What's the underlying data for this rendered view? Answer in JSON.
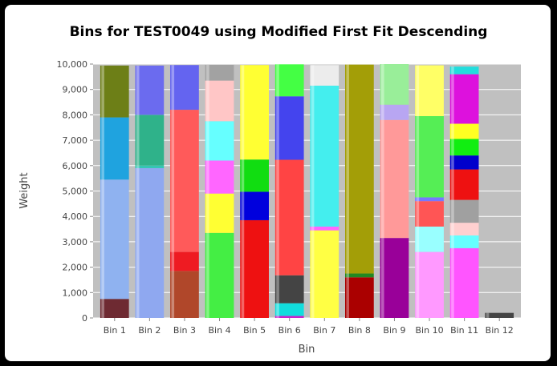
{
  "window": {
    "title": "Bins for TEST0049 using Modified First Fit Descending"
  },
  "chart_data": {
    "type": "bar",
    "stacked": true,
    "title": "Bins for TEST0049 using Modified First Fit Descending",
    "xlabel": "Bin",
    "ylabel": "Weight",
    "ylim": [
      0,
      10000
    ],
    "yticks": [
      0,
      1000,
      2000,
      3000,
      4000,
      5000,
      6000,
      7000,
      8000,
      9000,
      10000
    ],
    "ytick_labels": [
      "0",
      "1,000",
      "2,000",
      "3,000",
      "4,000",
      "5,000",
      "6,000",
      "7,000",
      "8,000",
      "9,000",
      "10,000"
    ],
    "grid": true,
    "legend": "none",
    "categories": [
      "Bin 1",
      "Bin 2",
      "Bin 3",
      "Bin 4",
      "Bin 5",
      "Bin 6",
      "Bin 7",
      "Bin 8",
      "Bin 9",
      "Bin 10",
      "Bin 11",
      "Bin 12"
    ],
    "bins": [
      {
        "name": "Bin 1",
        "items": [
          {
            "value": 750,
            "color": "#6e2a32"
          },
          {
            "value": 4700,
            "color": "#8fb2f0"
          },
          {
            "value": 2450,
            "color": "#1fa3df"
          },
          {
            "value": 2040,
            "color": "#6d7f17"
          }
        ]
      },
      {
        "name": "Bin 2",
        "items": [
          {
            "value": 5900,
            "color": "#8fa8f0"
          },
          {
            "value": 100,
            "color": "#33c6b4"
          },
          {
            "value": 2000,
            "color": "#2fb28a"
          },
          {
            "value": 1940,
            "color": "#6b6bef"
          }
        ]
      },
      {
        "name": "Bin 3",
        "items": [
          {
            "value": 1850,
            "color": "#b0472a"
          },
          {
            "value": 750,
            "color": "#ee1b22"
          },
          {
            "value": 5600,
            "color": "#ff5a5a"
          },
          {
            "value": 1760,
            "color": "#6464f0"
          }
        ]
      },
      {
        "name": "Bin 4",
        "items": [
          {
            "value": 3350,
            "color": "#44ee44"
          },
          {
            "value": 1550,
            "color": "#ffff33"
          },
          {
            "value": 1300,
            "color": "#ff66ff"
          },
          {
            "value": 1550,
            "color": "#66ffff"
          },
          {
            "value": 1600,
            "color": "#ffc6c6"
          },
          {
            "value": 620,
            "color": "#a2a2a2"
          }
        ]
      },
      {
        "name": "Bin 5",
        "items": [
          {
            "value": 3850,
            "color": "#ee1111"
          },
          {
            "value": 1120,
            "color": "#0000dd"
          },
          {
            "value": 1270,
            "color": "#11dd11"
          },
          {
            "value": 3720,
            "color": "#ffff33"
          }
        ]
      },
      {
        "name": "Bin 6",
        "items": [
          {
            "value": 80,
            "color": "#cc22cc"
          },
          {
            "value": 500,
            "color": "#11dddd"
          },
          {
            "value": 1100,
            "color": "#444444"
          },
          {
            "value": 4550,
            "color": "#ff4444"
          },
          {
            "value": 2500,
            "color": "#4444ee"
          },
          {
            "value": 1260,
            "color": "#44ff44"
          }
        ]
      },
      {
        "name": "Bin 7",
        "items": [
          {
            "value": 3450,
            "color": "#ffff44"
          },
          {
            "value": 150,
            "color": "#ff66ff"
          },
          {
            "value": 5550,
            "color": "#44eeee"
          },
          {
            "value": 810,
            "color": "#ececec"
          }
        ]
      },
      {
        "name": "Bin 8",
        "items": [
          {
            "value": 1600,
            "color": "#aa0000"
          },
          {
            "value": 150,
            "color": "#228822"
          },
          {
            "value": 8230,
            "color": "#a39e07"
          }
        ]
      },
      {
        "name": "Bin 9",
        "items": [
          {
            "value": 3150,
            "color": "#990099"
          },
          {
            "value": 4650,
            "color": "#ff9999"
          },
          {
            "value": 600,
            "color": "#b8a6f2"
          },
          {
            "value": 1600,
            "color": "#99ee99"
          }
        ]
      },
      {
        "name": "Bin 10",
        "items": [
          {
            "value": 2600,
            "color": "#ff99ff"
          },
          {
            "value": 1000,
            "color": "#99ffff"
          },
          {
            "value": 1000,
            "color": "#ff5555"
          },
          {
            "value": 150,
            "color": "#7777ff"
          },
          {
            "value": 3200,
            "color": "#55ee55"
          },
          {
            "value": 2000,
            "color": "#ffff66"
          }
        ]
      },
      {
        "name": "Bin 11",
        "items": [
          {
            "value": 2750,
            "color": "#ff55ff"
          },
          {
            "value": 500,
            "color": "#66ffff"
          },
          {
            "value": 500,
            "color": "#ffd0d0"
          },
          {
            "value": 900,
            "color": "#a0a0a0"
          },
          {
            "value": 1200,
            "color": "#ee1111"
          },
          {
            "value": 550,
            "color": "#0000cc"
          },
          {
            "value": 650,
            "color": "#11ee11"
          },
          {
            "value": 600,
            "color": "#ffff22"
          },
          {
            "value": 1950,
            "color": "#dd11dd"
          },
          {
            "value": 300,
            "color": "#22dddd"
          }
        ]
      },
      {
        "name": "Bin 12",
        "items": [
          {
            "value": 200,
            "color": "#444444"
          }
        ]
      }
    ]
  },
  "colors": {
    "plot_background": "#c0c0c0",
    "gridline": "#ffffff",
    "frame": "#000000"
  }
}
